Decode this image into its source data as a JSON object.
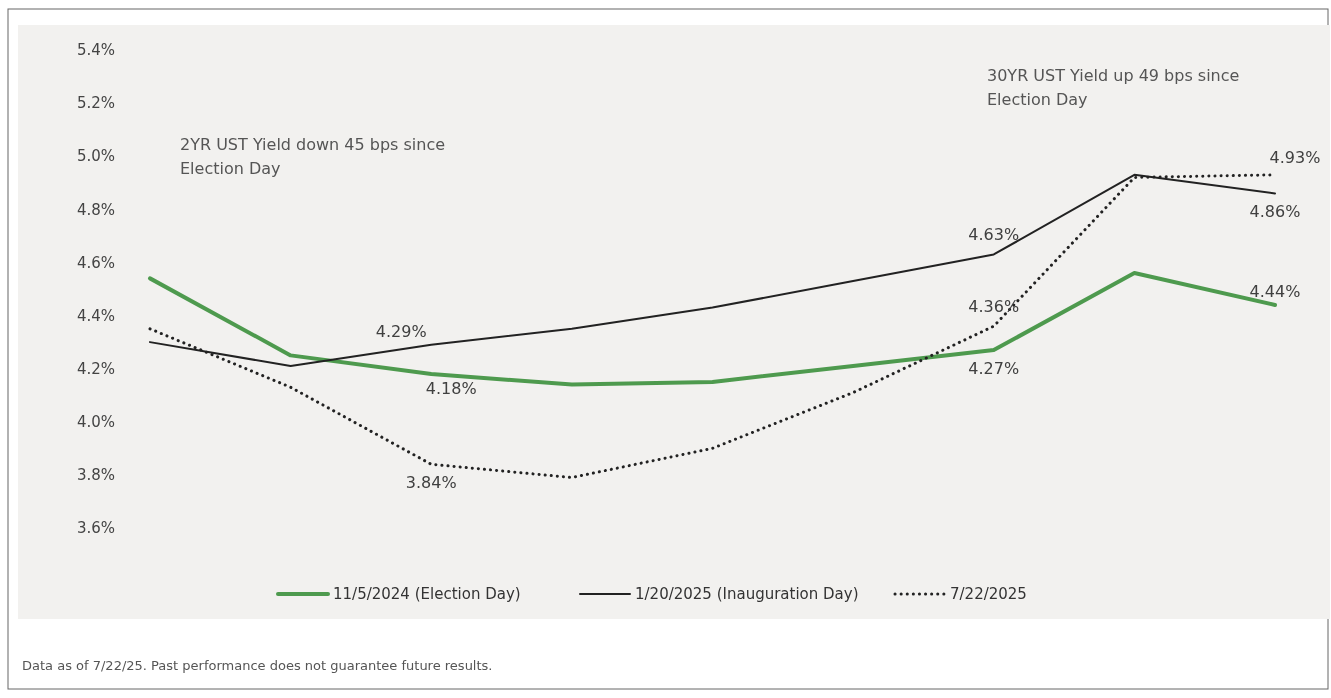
{
  "chart_data": {
    "type": "line",
    "categories": [
      null,
      null,
      null,
      null,
      null,
      null,
      null,
      null,
      null
    ],
    "series": [
      {
        "name": "11/5/2024 (Election Day)",
        "color": "#4e9a4e",
        "line_style": "solid",
        "values": [
          4.54,
          4.25,
          4.18,
          4.14,
          4.15,
          4.21,
          4.27,
          4.56,
          4.44
        ],
        "value_labels": [
          null,
          null,
          "4.18%",
          null,
          null,
          null,
          "4.27%",
          null,
          "4.44%"
        ]
      },
      {
        "name": "1/20/2025 (Inauguration Day)",
        "color": "#222222",
        "line_style": "solid",
        "values": [
          4.3,
          4.21,
          4.29,
          4.35,
          4.43,
          4.53,
          4.63,
          4.93,
          4.86
        ],
        "value_labels": [
          null,
          null,
          "4.29%",
          null,
          null,
          null,
          "4.63%",
          null,
          "4.86%"
        ]
      },
      {
        "name": "7/22/2025",
        "color": "#222222",
        "line_style": "dotted",
        "values": [
          4.35,
          4.13,
          3.84,
          3.79,
          3.9,
          4.11,
          4.36,
          4.92,
          4.93
        ],
        "value_labels": [
          null,
          null,
          "3.84%",
          null,
          null,
          null,
          "4.36%",
          null,
          "4.93%"
        ]
      }
    ],
    "ylim": [
      3.6,
      5.4
    ],
    "yticks": [
      {
        "value": 3.6,
        "label": "3.6%"
      },
      {
        "value": 3.8,
        "label": "3.8%"
      },
      {
        "value": 4.0,
        "label": "4.0%"
      },
      {
        "value": 4.2,
        "label": "4.2%"
      },
      {
        "value": 4.4,
        "label": "4.4%"
      },
      {
        "value": 4.6,
        "label": "4.6%"
      },
      {
        "value": 4.8,
        "label": "4.8%"
      },
      {
        "value": 5.0,
        "label": "5.0%"
      },
      {
        "value": 5.2,
        "label": "5.2%"
      },
      {
        "value": 5.4,
        "label": "5.4%"
      }
    ],
    "grid": false,
    "legend": "bottom",
    "marker": "none",
    "annotations": [
      "2YR UST Yield down 45 bps since Election Day",
      "30YR UST Yield up 49 bps since Election Day",
      "Data as of 7/22/25. Past performance does not guarantee future results."
    ]
  }
}
